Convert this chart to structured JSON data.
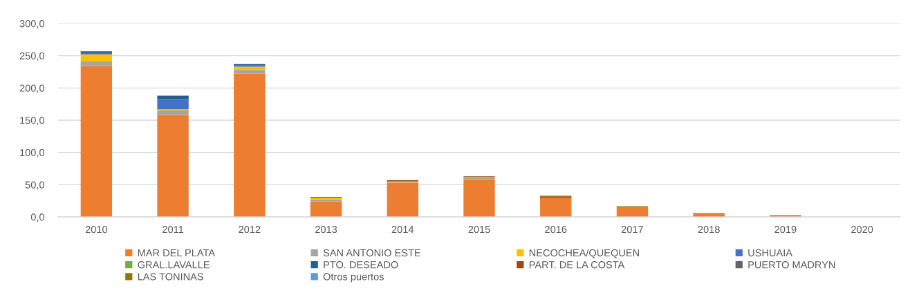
{
  "chart_data": {
    "type": "bar",
    "stacked": true,
    "categories": [
      "2010",
      "2011",
      "2012",
      "2013",
      "2014",
      "2015",
      "2016",
      "2017",
      "2018",
      "2019",
      "2020"
    ],
    "series": [
      {
        "name": "MAR DEL PLATA",
        "color": "#ed7d31",
        "values": [
          234,
          158,
          222,
          24,
          53,
          58,
          30,
          16,
          5,
          3,
          0
        ]
      },
      {
        "name": "SAN ANTONIO ESTE",
        "color": "#a5a5a5",
        "values": [
          7,
          7,
          6,
          3,
          1,
          2,
          0,
          0,
          0,
          0,
          0
        ]
      },
      {
        "name": "NECOCHEA/QUEQUEN",
        "color": "#ffc000",
        "values": [
          11,
          2,
          5,
          3,
          1,
          1,
          0,
          0,
          0,
          0,
          0
        ]
      },
      {
        "name": "USHUAIA",
        "color": "#4472c4",
        "values": [
          3,
          16,
          2,
          0,
          0,
          0,
          0,
          0,
          0,
          0,
          0
        ]
      },
      {
        "name": "GRAL.LAVALLE",
        "color": "#70ad47",
        "values": [
          0,
          0,
          0,
          0,
          0,
          1,
          0,
          1,
          0,
          0,
          0
        ]
      },
      {
        "name": "PTO. DESEADO",
        "color": "#255e91",
        "values": [
          2,
          5,
          2,
          0,
          0,
          0,
          0,
          0,
          0,
          0,
          0
        ]
      },
      {
        "name": "PART. DE LA COSTA",
        "color": "#9e480e",
        "values": [
          0,
          0,
          0,
          1,
          2,
          1,
          2,
          0,
          1,
          0,
          0
        ]
      },
      {
        "name": "PUERTO MADRYN",
        "color": "#636363",
        "values": [
          0,
          0,
          0,
          0,
          0,
          0,
          0,
          0,
          0,
          0,
          0
        ]
      },
      {
        "name": "LAS TONINAS",
        "color": "#997300",
        "values": [
          0,
          0,
          0,
          0,
          0,
          0,
          1,
          0,
          0,
          0,
          0
        ]
      },
      {
        "name": "Otros puertos",
        "color": "#5b9bd5",
        "values": [
          0,
          0,
          0,
          0,
          0,
          0,
          0,
          0,
          0,
          0,
          0
        ]
      }
    ],
    "ylim": [
      0,
      300
    ],
    "yticks": [
      {
        "value": 0,
        "label": "0,0"
      },
      {
        "value": 50,
        "label": "50,0"
      },
      {
        "value": 100,
        "label": "100,0"
      },
      {
        "value": 150,
        "label": "150,0"
      },
      {
        "value": 200,
        "label": "200,0"
      },
      {
        "value": 250,
        "label": "250,0"
      },
      {
        "value": 300,
        "label": "300,0"
      }
    ],
    "grid": "y",
    "legend": "bottom"
  }
}
